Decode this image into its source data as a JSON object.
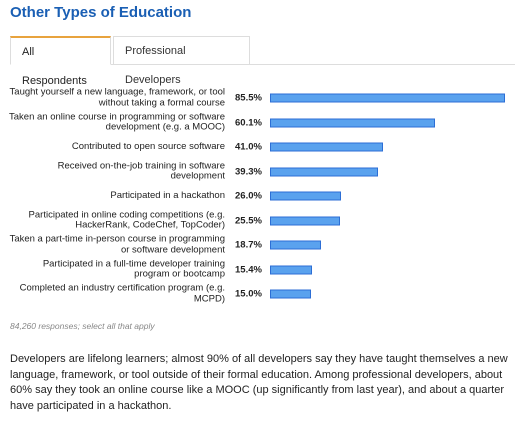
{
  "chart_data": {
    "type": "bar",
    "orientation": "horizontal",
    "title": "Other Types of Education",
    "categories": [
      "Taught yourself a new language, framework, or tool without taking a formal course",
      "Taken an online course in programming or software development (e.g. a MOOC)",
      "Contributed to open source software",
      "Received on-the-job training in software development",
      "Participated in a hackathon",
      "Participated in online coding competitions (e.g. HackerRank, CodeChef, TopCoder)",
      "Taken a part-time in-person course in programming or software development",
      "Participated in a full-time developer training program or bootcamp",
      "Completed an industry certification program (e.g. MCPD)"
    ],
    "values": [
      85.5,
      60.1,
      41.0,
      39.3,
      26.0,
      25.5,
      18.7,
      15.4,
      15.0
    ],
    "value_labels": [
      "85.5%",
      "60.1%",
      "41.0%",
      "39.3%",
      "26.0%",
      "25.5%",
      "18.7%",
      "15.4%",
      "15.0%"
    ],
    "color": "#5aa2ee",
    "note": "84,260 responses; select all that apply"
  },
  "tabs": [
    "All Respondents",
    "Professional Developers"
  ],
  "description": "Developers are lifelong learners; almost 90% of all developers say they have taught themselves a new language, framework, or tool outside of their formal education. Among professional developers, about 60% say they took an online course like a MOOC (up significantly from last year), and about a quarter have participated in a hackathon."
}
